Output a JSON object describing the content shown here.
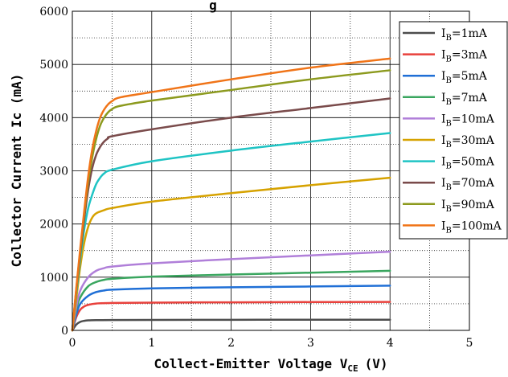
{
  "chart_data": {
    "type": "line",
    "title": "g",
    "xlabel": "Collect-Emitter Voltage V",
    "xlabel_sub": "CE",
    "xlabel_unit": "(V)",
    "ylabel": "Collector  Current Ic (mA)",
    "xlim": [
      0,
      5
    ],
    "ylim": [
      0,
      6000
    ],
    "x_ticks": [
      "0",
      "1",
      "2",
      "3",
      "4",
      "5"
    ],
    "y_ticks": [
      "0",
      "1000",
      "2000",
      "3000",
      "4000",
      "5000",
      "6000"
    ],
    "grid": true,
    "legend_position": "top-right",
    "legend_prefix": "I",
    "legend_sub": "B",
    "series": [
      {
        "name": "=1mA",
        "color": "#4d4d4d",
        "x": [
          0,
          0.05,
          0.1,
          0.15,
          0.2,
          0.3,
          0.5,
          1,
          2,
          3,
          4
        ],
        "y": [
          0,
          110,
          160,
          180,
          188,
          192,
          195,
          197,
          199,
          200,
          200
        ]
      },
      {
        "name": "=3mA",
        "color": "#e8413c",
        "x": [
          0,
          0.05,
          0.1,
          0.15,
          0.2,
          0.3,
          0.5,
          1,
          2,
          3,
          4
        ],
        "y": [
          0,
          250,
          390,
          450,
          480,
          505,
          515,
          522,
          528,
          532,
          535
        ]
      },
      {
        "name": "=5mA",
        "color": "#1f6fd6",
        "x": [
          0,
          0.05,
          0.1,
          0.2,
          0.3,
          0.4,
          0.5,
          1,
          2,
          3,
          4
        ],
        "y": [
          0,
          300,
          500,
          650,
          720,
          750,
          765,
          790,
          810,
          825,
          840
        ]
      },
      {
        "name": "=7mA",
        "color": "#3aa65f",
        "x": [
          0,
          0.05,
          0.1,
          0.2,
          0.3,
          0.4,
          0.5,
          1,
          2,
          3,
          4
        ],
        "y": [
          0,
          400,
          620,
          830,
          910,
          950,
          970,
          1010,
          1050,
          1085,
          1120
        ]
      },
      {
        "name": "=10mA",
        "color": "#b07fd9",
        "x": [
          0,
          0.05,
          0.1,
          0.2,
          0.3,
          0.4,
          0.5,
          1,
          2,
          3,
          4
        ],
        "y": [
          0,
          450,
          750,
          1000,
          1120,
          1170,
          1200,
          1260,
          1340,
          1410,
          1480
        ]
      },
      {
        "name": "=30mA",
        "color": "#d6a200",
        "x": [
          0,
          0.05,
          0.1,
          0.15,
          0.2,
          0.25,
          0.3,
          0.4,
          0.5,
          1,
          2,
          3,
          4
        ],
        "y": [
          0,
          600,
          1200,
          1650,
          1950,
          2120,
          2200,
          2260,
          2300,
          2420,
          2580,
          2730,
          2870
        ]
      },
      {
        "name": "=50mA",
        "color": "#1fc4c4",
        "x": [
          0,
          0.05,
          0.1,
          0.15,
          0.2,
          0.25,
          0.3,
          0.35,
          0.4,
          0.5,
          1,
          2,
          3,
          4
        ],
        "y": [
          0,
          700,
          1350,
          1900,
          2300,
          2550,
          2750,
          2870,
          2950,
          3020,
          3180,
          3380,
          3550,
          3710
        ]
      },
      {
        "name": "=70mA",
        "color": "#7a4b4b",
        "x": [
          0,
          0.05,
          0.1,
          0.15,
          0.2,
          0.25,
          0.3,
          0.35,
          0.4,
          0.45,
          0.5,
          1,
          2,
          3,
          4
        ],
        "y": [
          0,
          750,
          1450,
          2100,
          2650,
          3050,
          3300,
          3450,
          3550,
          3610,
          3650,
          3780,
          4000,
          4180,
          4360
        ]
      },
      {
        "name": "=90mA",
        "color": "#8c9a1e",
        "x": [
          0,
          0.05,
          0.1,
          0.15,
          0.2,
          0.25,
          0.3,
          0.35,
          0.4,
          0.45,
          0.5,
          0.6,
          1,
          2,
          3,
          4
        ],
        "y": [
          0,
          780,
          1500,
          2200,
          2800,
          3250,
          3600,
          3850,
          4000,
          4100,
          4160,
          4220,
          4320,
          4520,
          4720,
          4890
        ]
      },
      {
        "name": "=100mA",
        "color": "#f07418",
        "x": [
          0,
          0.05,
          0.1,
          0.15,
          0.2,
          0.25,
          0.3,
          0.35,
          0.4,
          0.45,
          0.5,
          0.6,
          1,
          2,
          3,
          4
        ],
        "y": [
          0,
          800,
          1550,
          2250,
          2900,
          3400,
          3750,
          4000,
          4150,
          4250,
          4310,
          4380,
          4480,
          4720,
          4940,
          5110
        ]
      }
    ]
  }
}
